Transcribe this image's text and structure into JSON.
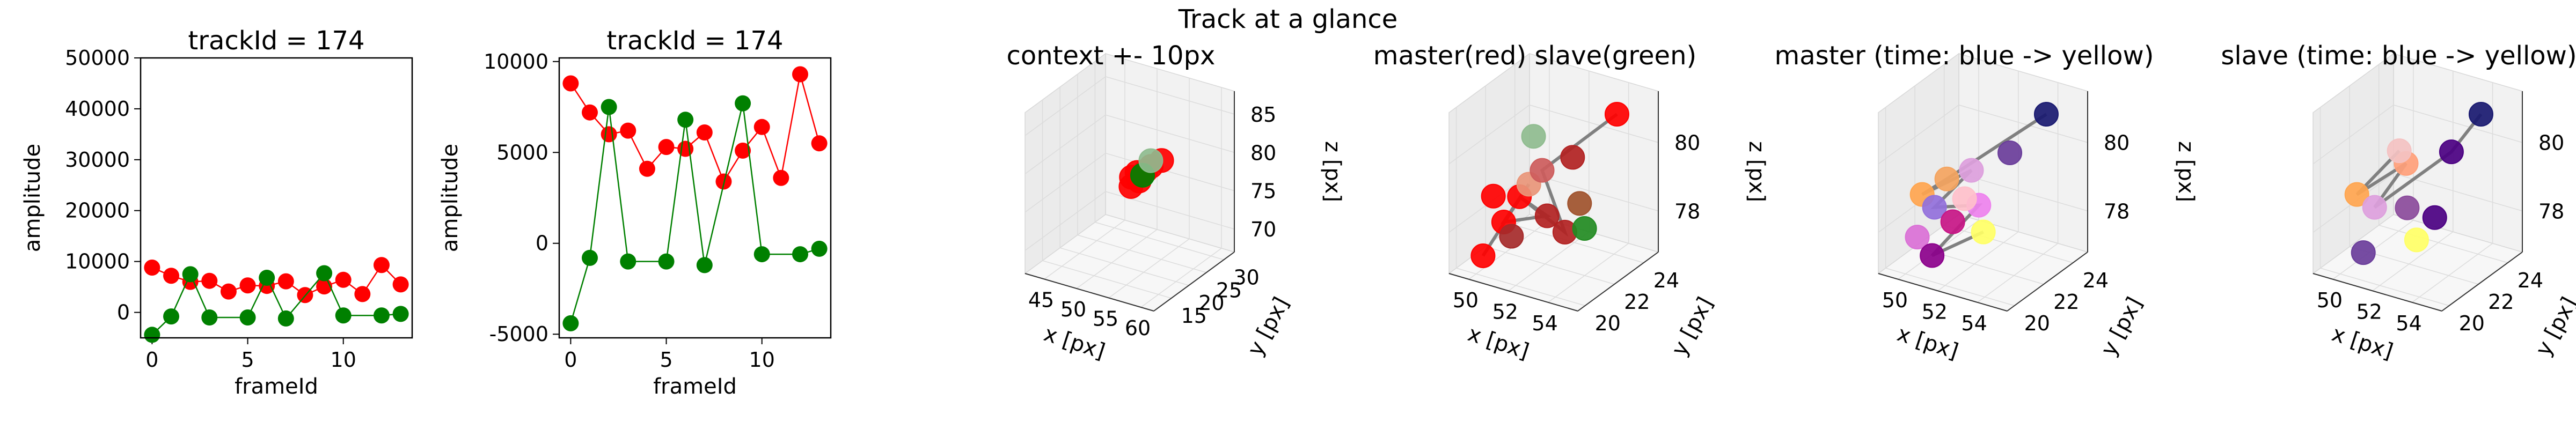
{
  "figure": {
    "suptitle": "Track at a glance"
  },
  "colors": {
    "master": "#ff0000",
    "slave": "#008000",
    "link": "#808080"
  },
  "chart_data": [
    {
      "type": "line",
      "title": "trackId = 174",
      "xlabel": "frameId",
      "ylabel": "amplitude",
      "xlim": [
        -0.6,
        13.6
      ],
      "ylim": [
        -5000,
        50000
      ],
      "xticks": [
        0,
        5,
        10
      ],
      "yticks": [
        0,
        10000,
        20000,
        30000,
        40000,
        50000
      ],
      "series": [
        {
          "color": "#ff0000",
          "x": [
            0,
            1,
            2,
            3,
            4,
            5,
            6,
            7,
            8,
            9,
            10,
            11,
            12,
            13
          ],
          "y": [
            8800,
            7200,
            6000,
            6200,
            4100,
            5300,
            5200,
            6100,
            3400,
            5100,
            6400,
            3600,
            9300,
            5500
          ]
        },
        {
          "color": "#008000",
          "x": [
            0,
            1,
            2,
            3,
            5,
            6,
            7,
            9,
            10,
            12,
            13
          ],
          "y": [
            -4400,
            -800,
            7500,
            -1000,
            -1000,
            6800,
            -1200,
            7700,
            -600,
            -600,
            -300
          ]
        }
      ]
    },
    {
      "type": "line",
      "title": "trackId = 174",
      "xlabel": "frameId",
      "ylabel": "amplitude",
      "xlim": [
        -0.6,
        13.6
      ],
      "ylim": [
        -5200,
        10200
      ],
      "xticks": [
        0,
        5,
        10
      ],
      "yticks": [
        -5000,
        0,
        5000,
        10000
      ],
      "series": [
        {
          "color": "#ff0000",
          "x": [
            0,
            1,
            2,
            3,
            4,
            5,
            6,
            7,
            8,
            9,
            10,
            11,
            12,
            13
          ],
          "y": [
            8800,
            7200,
            6000,
            6200,
            4100,
            5300,
            5200,
            6100,
            3400,
            5100,
            6400,
            3600,
            9300,
            5500
          ]
        },
        {
          "color": "#008000",
          "x": [
            0,
            1,
            2,
            3,
            5,
            6,
            7,
            9,
            10,
            12,
            13
          ],
          "y": [
            -4400,
            -800,
            7500,
            -1000,
            -1000,
            6800,
            -1200,
            7700,
            -600,
            -600,
            -300
          ]
        }
      ]
    },
    {
      "type": "scatter",
      "title": "context +- 10px",
      "xlabel": "x [px]",
      "ylabel": "y [px]",
      "zlabel": "z [px]",
      "xlim": [
        42,
        62
      ],
      "ylim": [
        10,
        33
      ],
      "zlim": [
        67,
        88
      ],
      "xticks": [
        45,
        50,
        55,
        60
      ],
      "yticks": [
        15,
        20,
        25,
        30
      ],
      "zticks": [
        70,
        75,
        80,
        85
      ],
      "points": [
        {
          "x": 52.0,
          "y": 22.0,
          "z": 78.0,
          "c": "#ff0000"
        },
        {
          "x": 52.6,
          "y": 22.5,
          "z": 78.6,
          "c": "#ff0000"
        },
        {
          "x": 53.2,
          "y": 22.0,
          "z": 77.8,
          "c": "#ff0000"
        },
        {
          "x": 53.8,
          "y": 22.8,
          "z": 79.0,
          "c": "#ff0000"
        },
        {
          "x": 54.4,
          "y": 23.2,
          "z": 79.6,
          "c": "#ff0000"
        },
        {
          "x": 55.6,
          "y": 24.0,
          "z": 80.4,
          "c": "#ff0000"
        },
        {
          "x": 52.2,
          "y": 21.5,
          "z": 77.0,
          "c": "#ff0000"
        },
        {
          "x": 53.4,
          "y": 22.6,
          "z": 78.4,
          "c": "#008000"
        },
        {
          "x": 54.2,
          "y": 23.5,
          "z": 80.2,
          "c": "#8fbc8f"
        }
      ],
      "path": [
        [
          52.0,
          22.0,
          78.0
        ],
        [
          53.8,
          22.8,
          79.0
        ],
        [
          52.6,
          22.5,
          78.6
        ],
        [
          54.4,
          23.2,
          79.6
        ],
        [
          53.2,
          22.0,
          77.8
        ],
        [
          55.6,
          24.0,
          80.4
        ]
      ]
    },
    {
      "type": "scatter",
      "title": "master(red) slave(green)",
      "xlabel": "x [px]",
      "ylabel": "y [px]",
      "zlabel": "z [px]",
      "xlim": [
        49,
        55.5
      ],
      "ylim": [
        19.5,
        25
      ],
      "zlim": [
        76.8,
        81.5
      ],
      "xticks": [
        50,
        52,
        54
      ],
      "yticks": [
        20,
        22,
        24
      ],
      "zticks": [
        78,
        80
      ],
      "points": [
        {
          "x": 50.2,
          "y": 20.2,
          "z": 77.3,
          "c": "#ff0000"
        },
        {
          "x": 50.8,
          "y": 20.8,
          "z": 78.2,
          "c": "#ff0000"
        },
        {
          "x": 51.3,
          "y": 21.2,
          "z": 78.9,
          "c": "#ff0000"
        },
        {
          "x": 50.5,
          "y": 20.5,
          "z": 79.0,
          "c": "#ff0000"
        },
        {
          "x": 51.7,
          "y": 21.3,
          "z": 79.3,
          "c": "#e9967a"
        },
        {
          "x": 52.4,
          "y": 21.6,
          "z": 78.4,
          "c": "#b22222"
        },
        {
          "x": 53.0,
          "y": 22.0,
          "z": 77.9,
          "c": "#b22222"
        },
        {
          "x": 53.3,
          "y": 22.6,
          "z": 78.6,
          "c": "#a0522d"
        },
        {
          "x": 52.0,
          "y": 21.8,
          "z": 79.6,
          "c": "#cd5c5c"
        },
        {
          "x": 51.2,
          "y": 22.3,
          "z": 80.3,
          "c": "#8fbc8f"
        },
        {
          "x": 54.3,
          "y": 23.8,
          "z": 81.0,
          "c": "#ff0000"
        },
        {
          "x": 53.7,
          "y": 22.4,
          "z": 78.0,
          "c": "#228b22"
        },
        {
          "x": 52.8,
          "y": 22.8,
          "z": 79.8,
          "c": "#b22222"
        },
        {
          "x": 50.6,
          "y": 21.6,
          "z": 77.5,
          "c": "#a52a2a"
        }
      ],
      "path": [
        [
          50.2,
          20.2,
          77.3
        ],
        [
          51.7,
          21.3,
          79.3
        ],
        [
          50.8,
          20.8,
          78.2
        ],
        [
          52.4,
          21.6,
          78.4
        ],
        [
          51.3,
          21.2,
          78.9
        ],
        [
          53.0,
          22.0,
          77.9
        ],
        [
          52.0,
          21.8,
          79.6
        ],
        [
          54.3,
          23.8,
          81.0
        ]
      ]
    },
    {
      "type": "scatter",
      "title": "master (time: blue -> yellow)",
      "xlabel": "x [px]",
      "ylabel": "y [px]",
      "zlabel": "z [px]",
      "xlim": [
        49,
        55.5
      ],
      "ylim": [
        19.5,
        25
      ],
      "zlim": [
        76.8,
        81.5
      ],
      "xticks": [
        50,
        52,
        54
      ],
      "yticks": [
        20,
        22,
        24
      ],
      "zticks": [
        78,
        80
      ],
      "points": [
        {
          "x": 54.3,
          "y": 23.8,
          "z": 81.0,
          "c": "#191970"
        },
        {
          "x": 53.2,
          "y": 22.8,
          "z": 80.0,
          "c": "#6a3d9a"
        },
        {
          "x": 52.0,
          "y": 21.8,
          "z": 79.6,
          "c": "#dda0dd"
        },
        {
          "x": 51.2,
          "y": 21.2,
          "z": 79.4,
          "c": "#f4a460"
        },
        {
          "x": 50.4,
          "y": 20.6,
          "z": 79.0,
          "c": "#ffa54f"
        },
        {
          "x": 50.8,
          "y": 20.9,
          "z": 78.6,
          "c": "#9370db"
        },
        {
          "x": 51.5,
          "y": 21.2,
          "z": 78.2,
          "c": "#c71585"
        },
        {
          "x": 50.3,
          "y": 20.4,
          "z": 77.8,
          "c": "#da70d6"
        },
        {
          "x": 50.9,
          "y": 20.6,
          "z": 77.3,
          "c": "#8b008b"
        },
        {
          "x": 52.6,
          "y": 21.8,
          "z": 77.9,
          "c": "#ffff66"
        },
        {
          "x": 52.3,
          "y": 21.9,
          "z": 78.6,
          "c": "#ee82ee"
        },
        {
          "x": 51.8,
          "y": 21.6,
          "z": 78.8,
          "c": "#ffc0cb"
        }
      ],
      "path": [
        [
          54.3,
          23.8,
          81.0
        ],
        [
          51.2,
          21.2,
          79.4
        ],
        [
          50.4,
          20.6,
          79.0
        ],
        [
          52.0,
          21.8,
          79.6
        ],
        [
          50.8,
          20.9,
          78.6
        ],
        [
          52.3,
          21.9,
          78.6
        ],
        [
          50.9,
          20.6,
          77.3
        ],
        [
          52.6,
          21.8,
          77.9
        ]
      ]
    },
    {
      "type": "scatter",
      "title": "slave (time: blue -> yellow)",
      "xlabel": "x [px]",
      "ylabel": "y [px]",
      "zlabel": "z [px]",
      "xlim": [
        49,
        55.5
      ],
      "ylim": [
        19.5,
        25
      ],
      "zlim": [
        76.8,
        81.5
      ],
      "xticks": [
        50,
        52,
        54
      ],
      "yticks": [
        20,
        22,
        24
      ],
      "zticks": [
        78,
        80
      ],
      "points": [
        {
          "x": 54.3,
          "y": 23.8,
          "z": 81.0,
          "c": "#191970"
        },
        {
          "x": 53.4,
          "y": 23.0,
          "z": 80.0,
          "c": "#4b0082"
        },
        {
          "x": 52.0,
          "y": 21.8,
          "z": 79.8,
          "c": "#ffa07a"
        },
        {
          "x": 50.4,
          "y": 20.6,
          "z": 79.0,
          "c": "#ffa54f"
        },
        {
          "x": 51.0,
          "y": 21.0,
          "z": 78.6,
          "c": "#dda0dd"
        },
        {
          "x": 52.2,
          "y": 21.6,
          "z": 78.6,
          "c": "#8b4b9b"
        },
        {
          "x": 53.0,
          "y": 22.4,
          "z": 78.2,
          "c": "#4b0082"
        },
        {
          "x": 50.8,
          "y": 20.5,
          "z": 77.4,
          "c": "#6a3d9a"
        },
        {
          "x": 52.6,
          "y": 21.7,
          "z": 77.7,
          "c": "#ffff66"
        },
        {
          "x": 51.8,
          "y": 21.6,
          "z": 80.2,
          "c": "#f4c2c2"
        }
      ],
      "path": [
        [
          54.3,
          23.8,
          81.0
        ],
        [
          53.4,
          23.0,
          80.0
        ],
        [
          51.0,
          21.0,
          78.6
        ],
        [
          52.0,
          21.8,
          79.8
        ],
        [
          50.4,
          20.6,
          79.0
        ],
        [
          51.8,
          21.6,
          80.2
        ]
      ]
    }
  ]
}
